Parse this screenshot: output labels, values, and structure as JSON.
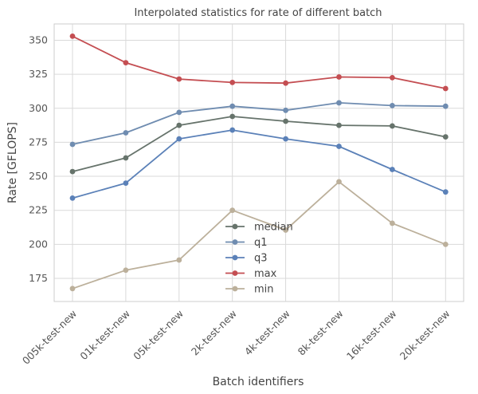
{
  "chart_data": {
    "type": "line",
    "title": "Interpolated statistics for rate of different batch",
    "xlabel": "Batch identifiers",
    "ylabel": "Rate [GFLOPS]",
    "categories": [
      "005k-test-new",
      "01k-test-new",
      "05k-test-new",
      "2k-test-new",
      "4k-test-new",
      "8k-test-new",
      "16k-test-new",
      "20k-test-new"
    ],
    "yticks": [
      175,
      200,
      225,
      250,
      275,
      300,
      325,
      350
    ],
    "ylim": [
      158,
      362
    ],
    "grid": true,
    "legend_position": "center-bottom",
    "series": [
      {
        "name": "median",
        "color": "#66736b",
        "values": [
          253.5,
          263.5,
          287.5,
          294.0,
          290.5,
          287.5,
          287.0,
          279.0
        ]
      },
      {
        "name": "q1",
        "color": "#6f8cb0",
        "values": [
          273.5,
          282.0,
          297.0,
          301.5,
          298.5,
          304.0,
          302.0,
          301.5
        ]
      },
      {
        "name": "q3",
        "color": "#5b81b8",
        "values": [
          234.0,
          245.0,
          277.5,
          284.0,
          277.5,
          272.0,
          255.0,
          238.5
        ]
      },
      {
        "name": "max",
        "color": "#c44e52",
        "values": [
          353.0,
          333.5,
          321.5,
          319.0,
          318.5,
          323.0,
          322.5,
          314.5
        ]
      },
      {
        "name": "min",
        "color": "#bcb09b",
        "values": [
          167.5,
          181.0,
          188.5,
          225.0,
          210.5,
          246.0,
          215.5,
          200.0
        ]
      }
    ]
  }
}
